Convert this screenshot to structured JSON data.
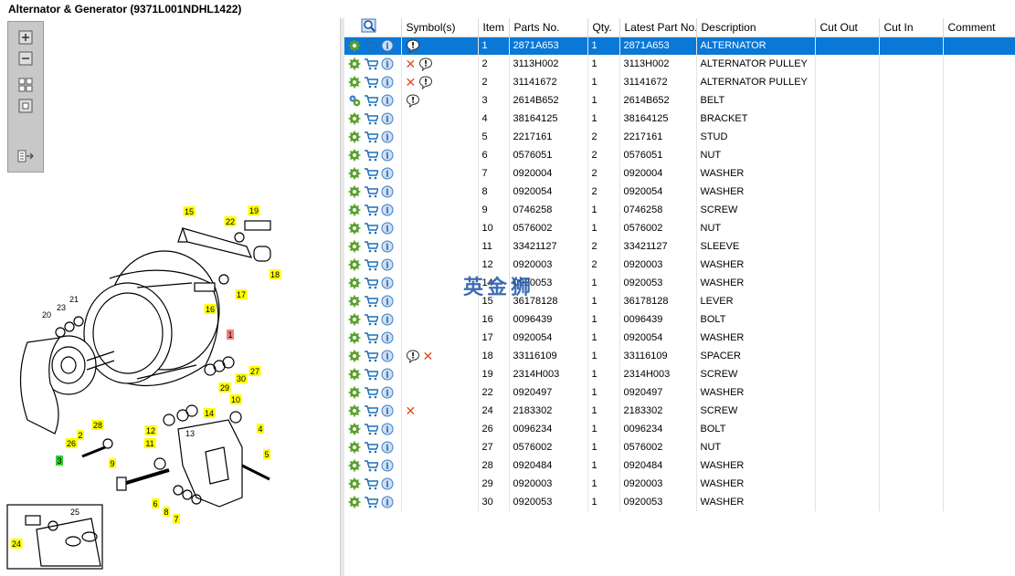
{
  "window": {
    "title": "Alternator & Generator (9371L001NDHL1422)"
  },
  "toolbar": {
    "buttons": [
      "zoom-in",
      "zoom-out",
      "fit",
      "actual-size",
      "toggle-list"
    ]
  },
  "grid": {
    "headers": {
      "symbols": "Symbol(s)",
      "item": "Item",
      "parts_no": "Parts No.",
      "qty": "Qty.",
      "latest": "Latest Part No.",
      "description": "Description",
      "cut_out": "Cut Out",
      "cut_in": "Cut In",
      "comment": "Comment"
    },
    "rows": [
      {
        "item": "1",
        "parts_no": "2871A653",
        "qty": "1",
        "latest": "2871A653",
        "description": "ALTERNATOR",
        "symbols": [
          "info-note"
        ],
        "selected": true,
        "gear": "single"
      },
      {
        "item": "2",
        "parts_no": "3113H002",
        "qty": "1",
        "latest": "3113H002",
        "description": "ALTERNATOR PULLEY",
        "symbols": [
          "cross",
          "info-note"
        ],
        "gear": "single"
      },
      {
        "item": "2",
        "parts_no": "31141672",
        "qty": "1",
        "latest": "31141672",
        "description": "ALTERNATOR PULLEY",
        "symbols": [
          "cross",
          "info-note"
        ],
        "gear": "single"
      },
      {
        "item": "3",
        "parts_no": "2614B652",
        "qty": "1",
        "latest": "2614B652",
        "description": "BELT",
        "symbols": [
          "info-note"
        ],
        "gear": "double"
      },
      {
        "item": "4",
        "parts_no": "38164125",
        "qty": "1",
        "latest": "38164125",
        "description": "BRACKET",
        "symbols": [],
        "gear": "single"
      },
      {
        "item": "5",
        "parts_no": "2217161",
        "qty": "2",
        "latest": "2217161",
        "description": "STUD",
        "symbols": [],
        "gear": "single"
      },
      {
        "item": "6",
        "parts_no": "0576051",
        "qty": "2",
        "latest": "0576051",
        "description": "NUT",
        "symbols": [],
        "gear": "single"
      },
      {
        "item": "7",
        "parts_no": "0920004",
        "qty": "2",
        "latest": "0920004",
        "description": "WASHER",
        "symbols": [],
        "gear": "single"
      },
      {
        "item": "8",
        "parts_no": "0920054",
        "qty": "2",
        "latest": "0920054",
        "description": "WASHER",
        "symbols": [],
        "gear": "single"
      },
      {
        "item": "9",
        "parts_no": "0746258",
        "qty": "1",
        "latest": "0746258",
        "description": "SCREW",
        "symbols": [],
        "gear": "single"
      },
      {
        "item": "10",
        "parts_no": "0576002",
        "qty": "1",
        "latest": "0576002",
        "description": "NUT",
        "symbols": [],
        "gear": "single"
      },
      {
        "item": "11",
        "parts_no": "33421127",
        "qty": "2",
        "latest": "33421127",
        "description": "SLEEVE",
        "symbols": [],
        "gear": "single"
      },
      {
        "item": "12",
        "parts_no": "0920003",
        "qty": "2",
        "latest": "0920003",
        "description": "WASHER",
        "symbols": [],
        "gear": "single"
      },
      {
        "item": "14",
        "parts_no": "0920053",
        "qty": "1",
        "latest": "0920053",
        "description": "WASHER",
        "symbols": [],
        "gear": "single"
      },
      {
        "item": "15",
        "parts_no": "36178128",
        "qty": "1",
        "latest": "36178128",
        "description": "LEVER",
        "symbols": [],
        "gear": "single"
      },
      {
        "item": "16",
        "parts_no": "0096439",
        "qty": "1",
        "latest": "0096439",
        "description": "BOLT",
        "symbols": [],
        "gear": "single"
      },
      {
        "item": "17",
        "parts_no": "0920054",
        "qty": "1",
        "latest": "0920054",
        "description": "WASHER",
        "symbols": [],
        "gear": "single"
      },
      {
        "item": "18",
        "parts_no": "33116109",
        "qty": "1",
        "latest": "33116109",
        "description": "SPACER",
        "symbols": [
          "info-note",
          "cross"
        ],
        "gear": "single"
      },
      {
        "item": "19",
        "parts_no": "2314H003",
        "qty": "1",
        "latest": "2314H003",
        "description": "SCREW",
        "symbols": [],
        "gear": "single"
      },
      {
        "item": "22",
        "parts_no": "0920497",
        "qty": "1",
        "latest": "0920497",
        "description": "WASHER",
        "symbols": [],
        "gear": "single"
      },
      {
        "item": "24",
        "parts_no": "2183302",
        "qty": "1",
        "latest": "2183302",
        "description": "SCREW",
        "symbols": [
          "cross"
        ],
        "gear": "single"
      },
      {
        "item": "26",
        "parts_no": "0096234",
        "qty": "1",
        "latest": "0096234",
        "description": "BOLT",
        "symbols": [],
        "gear": "single"
      },
      {
        "item": "27",
        "parts_no": "0576002",
        "qty": "1",
        "latest": "0576002",
        "description": "NUT",
        "symbols": [],
        "gear": "single"
      },
      {
        "item": "28",
        "parts_no": "0920484",
        "qty": "1",
        "latest": "0920484",
        "description": "WASHER",
        "symbols": [],
        "gear": "single"
      },
      {
        "item": "29",
        "parts_no": "0920003",
        "qty": "1",
        "latest": "0920003",
        "description": "WASHER",
        "symbols": [],
        "gear": "single"
      },
      {
        "item": "30",
        "parts_no": "0920053",
        "qty": "1",
        "latest": "0920053",
        "description": "WASHER",
        "symbols": [],
        "gear": "single"
      }
    ]
  },
  "diagram": {
    "callouts": [
      {
        "label": "1",
        "color": "#f08080"
      },
      {
        "label": "2",
        "color": "#ffff00"
      },
      {
        "label": "3",
        "color": "#33cc33"
      },
      {
        "label": "4",
        "color": "#ffff00"
      },
      {
        "label": "5",
        "color": "#ffff00"
      },
      {
        "label": "6",
        "color": "#ffff00"
      },
      {
        "label": "7",
        "color": "#ffff00"
      },
      {
        "label": "8",
        "color": "#ffff00"
      },
      {
        "label": "9",
        "color": "#ffff00"
      },
      {
        "label": "10",
        "color": "#ffff00"
      },
      {
        "label": "11",
        "color": "#ffff00"
      },
      {
        "label": "12",
        "color": "#ffff00"
      },
      {
        "label": "13",
        "color": ""
      },
      {
        "label": "14",
        "color": "#ffff00"
      },
      {
        "label": "15",
        "color": "#ffff00"
      },
      {
        "label": "16",
        "color": "#ffff00"
      },
      {
        "label": "17",
        "color": "#ffff00"
      },
      {
        "label": "18",
        "color": "#ffff00"
      },
      {
        "label": "19",
        "color": "#ffff00"
      },
      {
        "label": "20",
        "color": ""
      },
      {
        "label": "21",
        "color": ""
      },
      {
        "label": "22",
        "color": "#ffff00"
      },
      {
        "label": "23",
        "color": ""
      },
      {
        "label": "24",
        "color": "#ffff00"
      },
      {
        "label": "25",
        "color": ""
      },
      {
        "label": "26",
        "color": "#ffff00"
      },
      {
        "label": "27",
        "color": "#ffff00"
      },
      {
        "label": "28",
        "color": "#ffff00"
      },
      {
        "label": "29",
        "color": "#ffff00"
      },
      {
        "label": "30",
        "color": "#ffff00"
      }
    ]
  },
  "watermark": "英金狮",
  "colors": {
    "selection": "#0a78d7",
    "cross": "#e24a1b",
    "callout_yellow": "#ffff00"
  }
}
